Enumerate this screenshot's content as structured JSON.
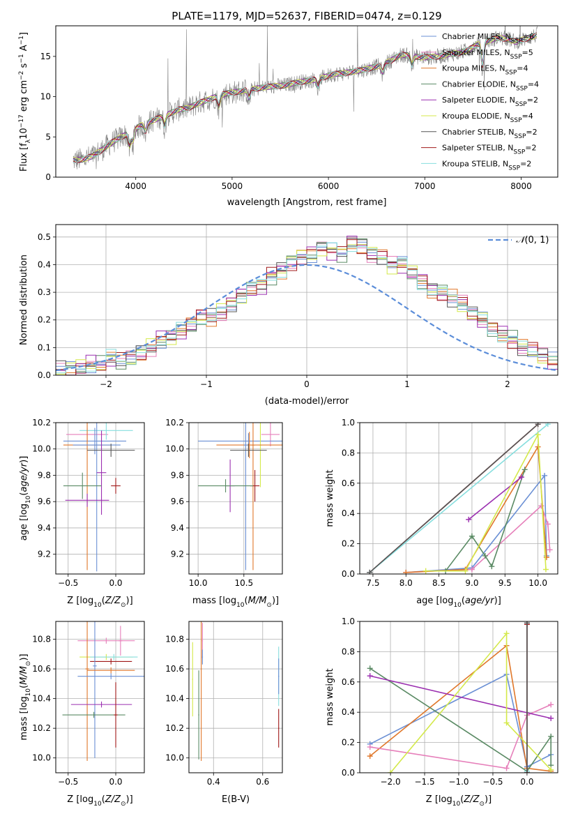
{
  "figure": {
    "title": "PLATE=1179, MJD=52637, FIBERID=0474, z=0.129"
  },
  "legend": [
    {
      "name": "Chabrier MILES, N_SSP=6",
      "base": "Chabrier MILES, N",
      "sub": "SSP",
      "tail": "=6",
      "color": "#6a8fd4"
    },
    {
      "name": "Salpeter MILES, N_SSP=5",
      "base": "Salpeter MILES, N",
      "sub": "SSP",
      "tail": "=5",
      "color": "#e67fba"
    },
    {
      "name": "Kroupa MILES, N_SSP=4",
      "base": "Kroupa MILES, N",
      "sub": "SSP",
      "tail": "=4",
      "color": "#e0772a"
    },
    {
      "name": "Chabrier ELODIE, N_SSP=4",
      "base": "Chabrier ELODIE, N",
      "sub": "SSP",
      "tail": "=4",
      "color": "#5a8a64"
    },
    {
      "name": "Salpeter ELODIE, N_SSP=2",
      "base": "Salpeter ELODIE, N",
      "sub": "SSP",
      "tail": "=2",
      "color": "#9b2fb0"
    },
    {
      "name": "Kroupa ELODIE, N_SSP=4",
      "base": "Kroupa ELODIE, N",
      "sub": "SSP",
      "tail": "=4",
      "color": "#d4e94a"
    },
    {
      "name": "Chabrier STELIB, N_SSP=2",
      "base": "Chabrier STELIB, N",
      "sub": "SSP",
      "tail": "=2",
      "color": "#555555"
    },
    {
      "name": "Salpeter STELIB, N_SSP=2",
      "base": "Salpeter STELIB, N",
      "sub": "SSP",
      "tail": "=2",
      "color": "#a01818"
    },
    {
      "name": "Kroupa STELIB, N_SSP=2",
      "base": "Kroupa STELIB, N",
      "sub": "SSP",
      "tail": "=2",
      "color": "#86dede"
    }
  ],
  "chart_data": [
    {
      "type": "line",
      "panel": "spectrum",
      "xlabel": "wavelength [Angstrom, rest frame]",
      "ylabel": "Flux [f_λ 10^-17 erg cm^-2 s^-1 A^-1]",
      "xlim": [
        3170,
        8380
      ],
      "ylim": [
        0,
        18.8
      ],
      "xticks": [
        4000,
        5000,
        6000,
        7000,
        8000
      ],
      "yticks": [
        0,
        5,
        10,
        15
      ],
      "data_color": "#808080",
      "continuum": {
        "x": [
          3350,
          3450,
          3550,
          3650,
          3750,
          3850,
          3950,
          4050,
          4150,
          4250,
          4350,
          4450,
          4550,
          4650,
          4750,
          4850,
          4950,
          5050,
          5150,
          5250,
          5350,
          5450,
          5550,
          5650,
          5750,
          5850,
          5950,
          6050,
          6150,
          6250,
          6350,
          6450,
          6550,
          6650,
          6750,
          6850,
          6950,
          7050,
          7150,
          7250,
          7350,
          7450,
          7550,
          7650,
          7750,
          7850,
          7950,
          8050,
          8150
        ],
        "y": [
          2.1,
          2.2,
          2.6,
          3.4,
          4.3,
          5.0,
          5.6,
          6.4,
          6.9,
          7.4,
          7.9,
          8.4,
          8.6,
          9.2,
          9.6,
          10.1,
          10.4,
          10.6,
          10.8,
          11.0,
          11.2,
          11.3,
          11.4,
          11.7,
          11.9,
          12.1,
          12.4,
          12.8,
          12.9,
          13.1,
          13.3,
          13.6,
          13.9,
          14.5,
          15.2,
          15.1,
          14.9,
          14.9,
          15.0,
          15.3,
          15.4,
          15.8,
          16.5,
          16.9,
          17.3,
          17.2,
          16.8,
          17.2,
          17.6
        ]
      }
    },
    {
      "type": "bar",
      "panel": "residual-histogram",
      "xlabel": "(data-model)/error",
      "ylabel": "Normed distribution",
      "xlim": [
        -2.5,
        2.5
      ],
      "ylim": [
        0,
        0.545
      ],
      "xticks": [
        -2,
        -1,
        0,
        1,
        2
      ],
      "yticks": [
        0.0,
        0.1,
        0.2,
        0.3,
        0.4,
        0.5
      ],
      "legend_label": "N(0,1)",
      "gaussian_color": "#5b8dd9",
      "bin_width": 0.1,
      "bin_start": -2.5,
      "bin_values": [
        0.02,
        0.02,
        0.03,
        0.04,
        0.04,
        0.06,
        0.05,
        0.06,
        0.08,
        0.1,
        0.13,
        0.14,
        0.16,
        0.18,
        0.21,
        0.21,
        0.23,
        0.26,
        0.29,
        0.31,
        0.32,
        0.36,
        0.38,
        0.41,
        0.43,
        0.44,
        0.46,
        0.45,
        0.44,
        0.48,
        0.47,
        0.44,
        0.43,
        0.4,
        0.4,
        0.37,
        0.34,
        0.31,
        0.3,
        0.28,
        0.26,
        0.22,
        0.2,
        0.17,
        0.15,
        0.13,
        0.1,
        0.09,
        0.07,
        0.05,
        0.05,
        0.04,
        0.03,
        0.03,
        0.03,
        0.02,
        0.02,
        0.02,
        0.01,
        0.01
      ]
    },
    {
      "type": "scatter",
      "panel": "Z-age",
      "xlabel": "Z [log10(Z/Z☉)]",
      "ylabel": "age  [log10(age/yr)]",
      "xlim": [
        -0.63,
        0.3
      ],
      "ylim": [
        9.05,
        10.2
      ],
      "xticks": [
        -0.5,
        0.0
      ],
      "yticks": [
        9.2,
        9.4,
        9.6,
        9.8,
        10.0,
        10.2
      ],
      "points": [
        {
          "x": -0.3,
          "y": 10.11,
          "xerr": 0.22,
          "yerr": 0.05,
          "color": "#e67fba"
        },
        {
          "x": -0.1,
          "y": 10.14,
          "xerr": 0.28,
          "yerr": 0.07,
          "color": "#86dede"
        },
        {
          "x": -0.22,
          "y": 10.06,
          "xerr": 0.33,
          "yerr": 0.1,
          "color": "#6a8fd4"
        },
        {
          "x": -0.3,
          "y": 10.03,
          "xerr": 0.25,
          "yerr": 0.95,
          "color": "#e0772a"
        },
        {
          "x": -0.2,
          "y": 10.03,
          "xerr": 0.25,
          "yerr": 0.96,
          "color": "#6a8fd4"
        },
        {
          "x": -0.05,
          "y": 9.99,
          "xerr": 0.25,
          "yerr": 0.05,
          "color": "#555555"
        },
        {
          "x": 0.0,
          "y": 9.72,
          "xerr": 0.05,
          "yerr": 0.06,
          "color": "#a01818"
        },
        {
          "x": -0.15,
          "y": 9.82,
          "xerr": 0.05,
          "yerr": 0.32,
          "color": "#9b2fb0"
        },
        {
          "x": -0.35,
          "y": 9.72,
          "xerr": 0.2,
          "yerr": 0.1,
          "color": "#5a8a64"
        },
        {
          "x": -0.3,
          "y": 9.61,
          "xerr": 0.23,
          "yerr": 0.05,
          "color": "#9b2fb0"
        }
      ]
    },
    {
      "type": "scatter",
      "panel": "mass-age",
      "xlabel": "mass [log10(M/M☉)]",
      "ylabel": "",
      "xlim": [
        9.9,
        10.92
      ],
      "ylim": [
        9.05,
        10.2
      ],
      "xticks": [
        10.0,
        10.5
      ],
      "yticks": [
        9.2,
        9.4,
        9.6,
        9.8,
        10.0,
        10.2
      ],
      "points": [
        {
          "x": 10.79,
          "y": 10.11,
          "xerr": 0.1,
          "yerr": 0.09,
          "color": "#e67fba"
        },
        {
          "x": 10.55,
          "y": 10.06,
          "xerr": 0.55,
          "yerr": 0.06,
          "color": "#6a8fd4"
        },
        {
          "x": 10.68,
          "y": 10.03,
          "xerr": 0.02,
          "yerr": 0.32,
          "color": "#d4e94a"
        },
        {
          "x": 10.56,
          "y": 10.03,
          "xerr": 0.36,
          "yerr": 0.1,
          "color": "#e0772a"
        },
        {
          "x": 10.52,
          "y": 10.03,
          "xerr": 0.02,
          "yerr": 0.95,
          "color": "#6a8fd4"
        },
        {
          "x": 10.6,
          "y": 10.03,
          "xerr": 0.02,
          "yerr": 0.95,
          "color": "#e0772a"
        },
        {
          "x": 10.55,
          "y": 9.99,
          "xerr": 0.2,
          "yerr": 0.05,
          "color": "#555555"
        },
        {
          "x": 10.35,
          "y": 9.72,
          "xerr": 0.05,
          "yerr": 0.2,
          "color": "#9b2fb0"
        },
        {
          "x": 10.62,
          "y": 9.72,
          "xerr": 0.05,
          "yerr": 0.12,
          "color": "#a01818"
        },
        {
          "x": 10.3,
          "y": 9.72,
          "xerr": 0.3,
          "yerr": 0.05,
          "color": "#5a8a64"
        }
      ]
    },
    {
      "type": "line",
      "panel": "age-massweight",
      "xlabel": "age  [log10(age/yr)]",
      "ylabel": "mass weight",
      "xlim": [
        7.3,
        10.3
      ],
      "ylim": [
        0,
        1.0
      ],
      "xticks": [
        7.5,
        8.0,
        8.5,
        9.0,
        9.5,
        10.0
      ],
      "yticks": [
        0.0,
        0.2,
        0.4,
        0.6,
        0.8,
        1.0
      ],
      "series": [
        {
          "color": "#a01818",
          "x": [
            7.45,
            10.0
          ],
          "y": [
            0.01,
            0.99
          ]
        },
        {
          "color": "#86dede",
          "x": [
            7.45,
            10.15
          ],
          "y": [
            0.01,
            0.99
          ]
        },
        {
          "color": "#555555",
          "x": [
            7.45,
            10.0
          ],
          "y": [
            0.01,
            0.99
          ]
        },
        {
          "color": "#6a8fd4",
          "x": [
            8.0,
            9.0,
            10.1,
            10.13
          ],
          "y": [
            0.01,
            0.04,
            0.65,
            0.12
          ]
        },
        {
          "color": "#e67fba",
          "x": [
            8.0,
            9.0,
            10.05,
            10.15,
            10.18
          ],
          "y": [
            0.01,
            0.03,
            0.45,
            0.33,
            0.16
          ]
        },
        {
          "color": "#e0772a",
          "x": [
            8.0,
            8.9,
            10.0,
            10.13
          ],
          "y": [
            0.01,
            0.03,
            0.84,
            0.11
          ]
        },
        {
          "color": "#5a8a64",
          "x": [
            8.6,
            9.0,
            9.2,
            9.3,
            9.8
          ],
          "y": [
            0.02,
            0.25,
            0.12,
            0.05,
            0.69
          ]
        },
        {
          "color": "#9b2fb0",
          "x": [
            8.95,
            9.75
          ],
          "y": [
            0.36,
            0.64
          ]
        },
        {
          "color": "#d4e94a",
          "x": [
            8.3,
            8.9,
            10.0,
            10.12
          ],
          "y": [
            0.02,
            0.02,
            0.92,
            0.03
          ]
        }
      ]
    },
    {
      "type": "scatter",
      "panel": "Z-mass",
      "xlabel": "Z [log10(Z/Z☉)]",
      "ylabel": "mass [log10(M/M☉)]",
      "xlim": [
        -0.63,
        0.3
      ],
      "ylim": [
        9.9,
        10.92
      ],
      "xticks": [
        -0.5,
        0.0
      ],
      "yticks": [
        10.0,
        10.2,
        10.4,
        10.6,
        10.8
      ],
      "points": [
        {
          "x": -0.1,
          "y": 10.79,
          "xerr": 0.3,
          "yerr": 0.02,
          "color": "#e67fba"
        },
        {
          "x": 0.05,
          "y": 10.79,
          "xerr": 0.02,
          "yerr": 0.1,
          "color": "#e67fba"
        },
        {
          "x": -0.1,
          "y": 10.68,
          "xerr": 0.28,
          "yerr": 0.02,
          "color": "#d4e94a"
        },
        {
          "x": -0.02,
          "y": 10.68,
          "xerr": 0.25,
          "yerr": 0.02,
          "color": "#86dede"
        },
        {
          "x": -0.05,
          "y": 10.65,
          "xerr": 0.22,
          "yerr": 0.02,
          "color": "#a01818"
        },
        {
          "x": -0.3,
          "y": 10.6,
          "xerr": 0.02,
          "yerr": 0.62,
          "color": "#e0772a"
        },
        {
          "x": -0.22,
          "y": 10.62,
          "xerr": 0.02,
          "yerr": 0.62,
          "color": "#6a8fd4"
        },
        {
          "x": -0.05,
          "y": 10.59,
          "xerr": 0.25,
          "yerr": 0.02,
          "color": "#e0772a"
        },
        {
          "x": -0.05,
          "y": 10.55,
          "xerr": 0.35,
          "yerr": 0.02,
          "color": "#6a8fd4"
        },
        {
          "x": -0.15,
          "y": 10.36,
          "xerr": 0.32,
          "yerr": 0.02,
          "color": "#9b2fb0"
        },
        {
          "x": -0.23,
          "y": 10.29,
          "xerr": 0.33,
          "yerr": 0.02,
          "color": "#5a8a64"
        },
        {
          "x": 0.0,
          "y": 10.29,
          "xerr": 0.02,
          "yerr": 0.22,
          "color": "#a01818"
        }
      ]
    },
    {
      "type": "scatter",
      "panel": "EBV-mass",
      "xlabel": "E(B-V)",
      "ylabel": "",
      "xlim": [
        0.3,
        0.68
      ],
      "ylim": [
        9.9,
        10.92
      ],
      "xticks": [
        0.4,
        0.6
      ],
      "yticks": [
        10.0,
        10.2,
        10.4,
        10.6,
        10.8
      ],
      "points": [
        {
          "x": 0.355,
          "y": 10.79,
          "xerr": 0.002,
          "yerr": 0.12,
          "color": "#e67fba"
        },
        {
          "x": 0.355,
          "y": 10.68,
          "xerr": 0.002,
          "yerr": 0.05,
          "color": "#6a8fd4"
        },
        {
          "x": 0.35,
          "y": 10.6,
          "xerr": 0.002,
          "yerr": 0.62,
          "color": "#e0772a"
        },
        {
          "x": 0.315,
          "y": 10.53,
          "xerr": 0.002,
          "yerr": 0.25,
          "color": "#d4e94a"
        },
        {
          "x": 0.34,
          "y": 10.29,
          "xerr": 0.002,
          "yerr": 0.3,
          "color": "#5a8a64"
        },
        {
          "x": 0.665,
          "y": 10.55,
          "xerr": 0.002,
          "yerr": 0.2,
          "color": "#86dede"
        },
        {
          "x": 0.665,
          "y": 10.55,
          "xerr": 0.002,
          "yerr": 0.12,
          "color": "#6a8fd4"
        },
        {
          "x": 0.665,
          "y": 10.2,
          "xerr": 0.002,
          "yerr": 0.13,
          "color": "#a01818"
        }
      ]
    },
    {
      "type": "line",
      "panel": "Z-massweight",
      "xlabel": "Z [log10(Z/Z☉)]",
      "ylabel": "mass weight",
      "xlim": [
        -2.45,
        0.45
      ],
      "ylim": [
        0,
        1.0
      ],
      "xticks": [
        -2.0,
        -1.5,
        -1.0,
        -0.5,
        0.0
      ],
      "yticks": [
        0.0,
        0.2,
        0.4,
        0.6,
        0.8,
        1.0
      ],
      "series": [
        {
          "color": "#6a8fd4",
          "x": [
            -2.3,
            -0.3,
            0.0,
            0.35
          ],
          "y": [
            0.19,
            0.65,
            0.04,
            0.12
          ]
        },
        {
          "color": "#e0772a",
          "x": [
            -2.3,
            -0.3,
            0.0,
            0.35
          ],
          "y": [
            0.11,
            0.84,
            0.03,
            0.01
          ]
        },
        {
          "color": "#e67fba",
          "x": [
            -2.3,
            -0.3,
            0.0,
            0.35
          ],
          "y": [
            0.17,
            0.03,
            0.38,
            0.45
          ]
        },
        {
          "color": "#5a8a64",
          "x": [
            -2.3,
            0.0,
            0.35,
            0.35
          ],
          "y": [
            0.69,
            0.01,
            0.24,
            0.05
          ]
        },
        {
          "color": "#9b2fb0",
          "x": [
            -2.3,
            0.35
          ],
          "y": [
            0.64,
            0.36
          ]
        },
        {
          "color": "#d4e94a",
          "x": [
            -2.0,
            -0.3,
            -0.3,
            0.35
          ],
          "y": [
            0.0,
            0.92,
            0.33,
            0.02
          ]
        },
        {
          "color": "#86dede",
          "x": [
            0.0,
            0.0
          ],
          "y": [
            0.01,
            0.99
          ]
        },
        {
          "color": "#a01818",
          "x": [
            0.0,
            0.0
          ],
          "y": [
            0.0,
            0.98
          ]
        },
        {
          "color": "#555555",
          "x": [
            0.0,
            0.0
          ],
          "y": [
            0.0,
            0.99
          ]
        }
      ]
    }
  ]
}
